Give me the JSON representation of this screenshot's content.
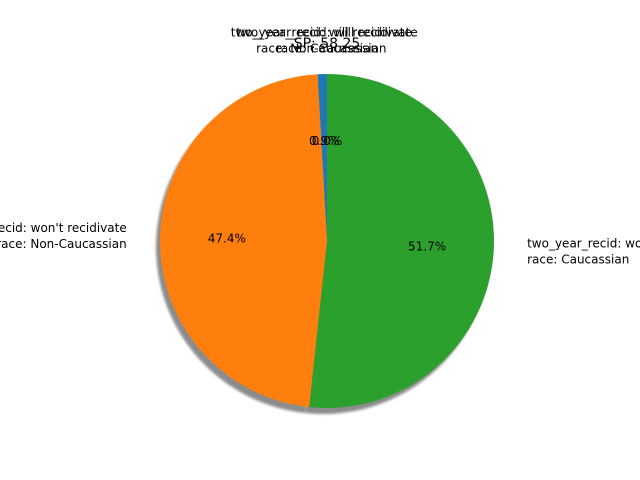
{
  "chart_data": {
    "type": "pie",
    "title": "SP: 58.25",
    "start_angle_deg": 90,
    "shadow": true,
    "slices": [
      {
        "label": [
          "two_year_recid: will recidivate",
          "race: Non-Caucassian"
        ],
        "value": 0.9,
        "pct_label": "0.9%",
        "color": "#1f77b4"
      },
      {
        "label": [
          "two_year_recid: won't recidivate",
          "race: Non-Caucassian"
        ],
        "value": 47.4,
        "pct_label": "47.4%",
        "color": "#ff7f0e"
      },
      {
        "label": [
          "two_year_recid: won't recidivate",
          "race: Caucassian"
        ],
        "value": 51.7,
        "pct_label": "51.7%",
        "color": "#2ca02c"
      },
      {
        "label": [
          "two_year_recid: will recidivate",
          "race: Caucassian"
        ],
        "value": 0.0,
        "pct_label": "0.0%",
        "color": "#d62728"
      }
    ]
  }
}
